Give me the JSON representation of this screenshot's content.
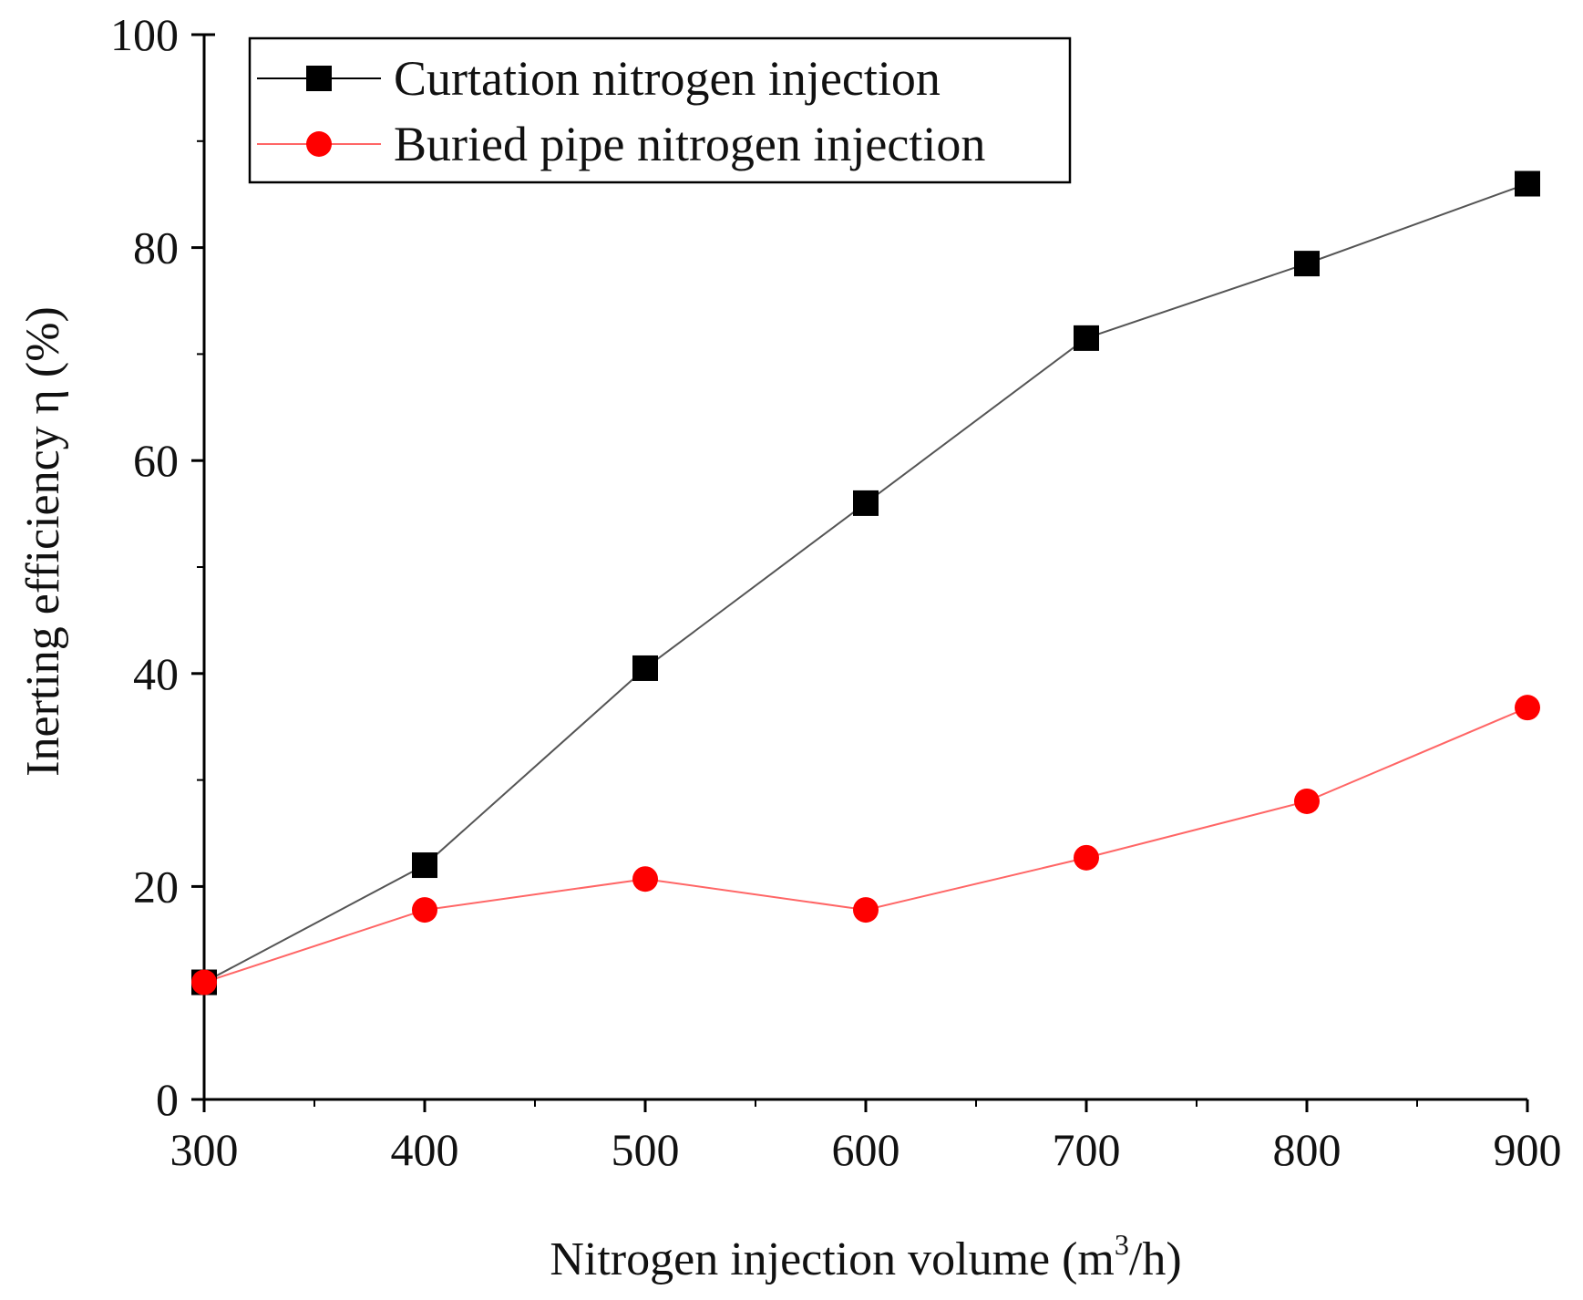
{
  "chart_data": {
    "type": "line",
    "x": [
      300,
      400,
      500,
      600,
      700,
      800,
      900
    ],
    "series": [
      {
        "name": "Curtation nitrogen injection",
        "values": [
          11,
          22,
          40.5,
          56,
          71.5,
          78.5,
          86
        ],
        "color": "#000000",
        "line_color": "#555555",
        "marker": "square"
      },
      {
        "name": "Buried pipe nitrogen injection",
        "values": [
          11,
          17.8,
          20.7,
          17.8,
          22.7,
          28,
          36.8
        ],
        "color": "#ff0000",
        "line_color": "#ff6666",
        "marker": "circle"
      }
    ],
    "xlabel_main": "Nitrogen injection volume (m",
    "xlabel_sup": "3",
    "xlabel_end": "/h)",
    "ylabel": "Inerting efficiency η (%)",
    "xlim": [
      300,
      900
    ],
    "ylim": [
      0,
      100
    ],
    "xticks": [
      "300",
      "400",
      "500",
      "600",
      "700",
      "800",
      "900"
    ],
    "yticks": [
      "0",
      "20",
      "40",
      "60",
      "80",
      "100"
    ],
    "legend_position": "top-left",
    "grid": false
  }
}
